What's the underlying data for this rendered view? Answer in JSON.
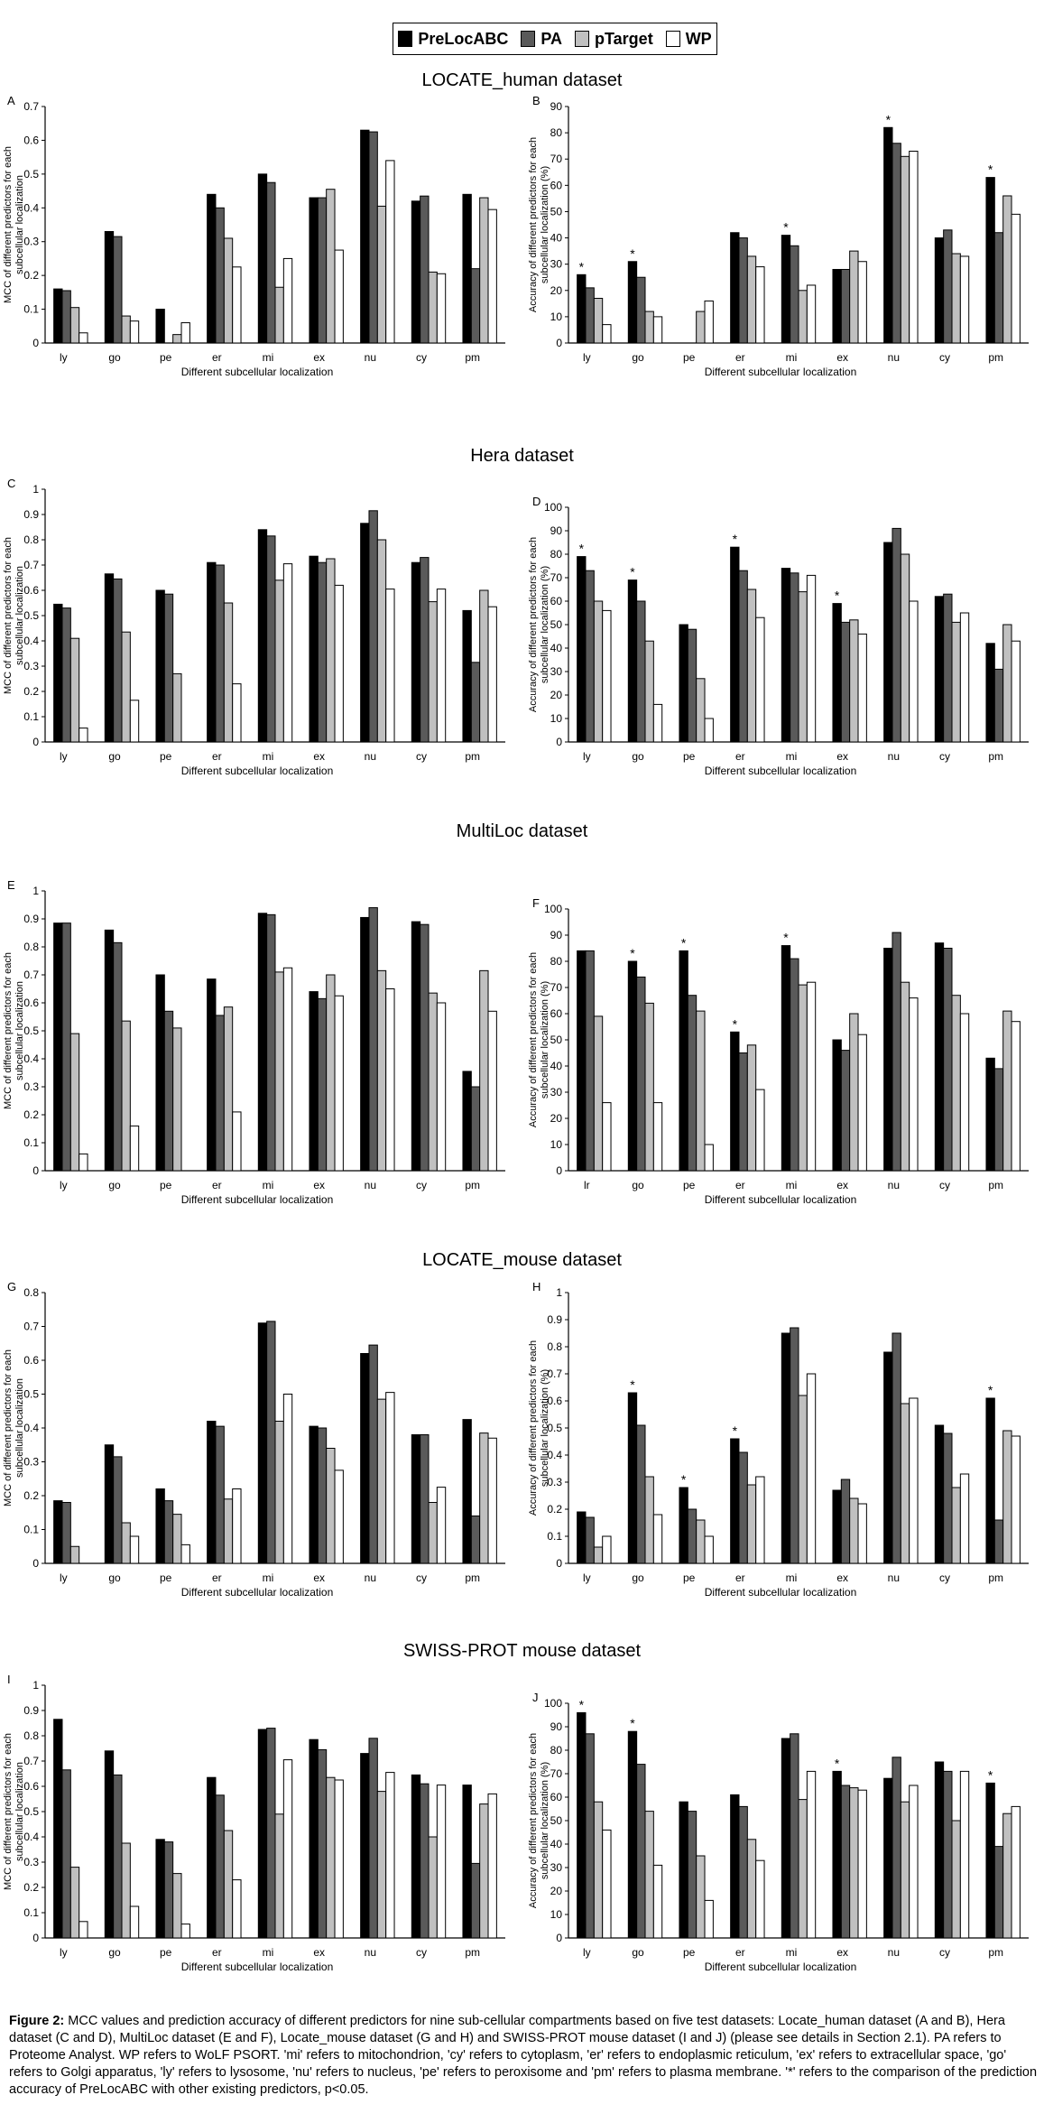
{
  "legend": [
    {
      "name": "PreLocABC",
      "color": "#000000"
    },
    {
      "name": "PA",
      "color": "#5a5a5a"
    },
    {
      "name": "pTarget",
      "color": "#c0c0c0"
    },
    {
      "name": "WP",
      "color": "#ffffff"
    }
  ],
  "dataset_titles": [
    "LOCATE_human dataset",
    "Hera dataset",
    "MultiLoc dataset",
    "LOCATE_mouse dataset",
    "SWISS-PROT mouse dataset"
  ],
  "caption": {
    "label": "Figure 2:",
    "text": " MCC values and prediction accuracy of different predictors for nine sub-cellular compartments based on five test datasets: Locate_human dataset (A and B), Hera dataset (C and D), MultiLoc dataset (E and F), Locate_mouse dataset (G and H) and SWISS-PROT mouse dataset (I and J) (please see details in Section 2.1). PA refers to Proteome Analyst. WP refers to WoLF PSORT. 'mi' refers to mitochondrion, 'cy' refers to cytoplasm, 'er' refers to endoplasmic reticulum, 'ex' refers to extracellular space, 'go' refers to Golgi apparatus, 'ly' refers to lysosome, 'nu' refers to nucleus, 'pe' refers to peroxisome and 'pm' refers to plasma membrane. '*' refers to the comparison of the prediction accuracy of PreLocABC with other existing predictors, p<0.05."
  },
  "chart_data": [
    {
      "type": "bar",
      "panel": "A",
      "xlabel": "Different subcellular localization",
      "ylabel": "MCC of different predictors for each subcellular localization",
      "categories": [
        "ly",
        "go",
        "pe",
        "er",
        "mi",
        "ex",
        "nu",
        "cy",
        "pm"
      ],
      "ylim": [
        0,
        0.7
      ],
      "yticks": [
        "0",
        "0.1",
        "0.2",
        "0.3",
        "0.4",
        "0.5",
        "0.6",
        "0.7"
      ],
      "series": [
        {
          "name": "PreLocABC",
          "values": [
            0.16,
            0.33,
            0.1,
            0.44,
            0.5,
            0.43,
            0.63,
            0.42,
            0.44
          ]
        },
        {
          "name": "PA",
          "values": [
            0.155,
            0.315,
            0,
            0.4,
            0.475,
            0.43,
            0.625,
            0.435,
            0.22
          ]
        },
        {
          "name": "pTarget",
          "values": [
            0.105,
            0.08,
            0.025,
            0.31,
            0.165,
            0.455,
            0.405,
            0.21,
            0.43
          ]
        },
        {
          "name": "WP",
          "values": [
            0.03,
            0.065,
            0.06,
            0.225,
            0.25,
            0.275,
            0.54,
            0.205,
            0.395
          ]
        }
      ],
      "stars": []
    },
    {
      "type": "bar",
      "panel": "B",
      "xlabel": "Different subcellular localization",
      "ylabel": "Accuracy of different predictors for each subcellular localization (%)",
      "categories": [
        "ly",
        "go",
        "pe",
        "er",
        "mi",
        "ex",
        "nu",
        "cy",
        "pm"
      ],
      "ylim": [
        0,
        90
      ],
      "yticks": [
        "0",
        "10",
        "20",
        "30",
        "40",
        "50",
        "60",
        "70",
        "80",
        "90"
      ],
      "series": [
        {
          "name": "PreLocABC",
          "values": [
            26,
            31,
            0,
            42,
            41,
            28,
            82,
            40,
            63
          ]
        },
        {
          "name": "PA",
          "values": [
            21,
            25,
            0,
            40,
            37,
            28,
            76,
            43,
            42
          ]
        },
        {
          "name": "pTarget",
          "values": [
            17,
            12,
            12,
            33,
            20,
            35,
            71,
            34,
            56
          ]
        },
        {
          "name": "WP",
          "values": [
            7,
            10,
            16,
            29,
            22,
            31,
            73,
            33,
            49
          ]
        }
      ],
      "stars": [
        0,
        1,
        4,
        6,
        8
      ]
    },
    {
      "type": "bar",
      "panel": "C",
      "xlabel": "Different subcellular localization",
      "ylabel": "MCC of different predictors for each subcellular localization",
      "categories": [
        "ly",
        "go",
        "pe",
        "er",
        "mi",
        "ex",
        "nu",
        "cy",
        "pm"
      ],
      "ylim": [
        0,
        1
      ],
      "yticks": [
        "0",
        "0.1",
        "0.2",
        "0.3",
        "0.4",
        "0.5",
        "0.6",
        "0.7",
        "0.8",
        "0.9",
        "1"
      ],
      "series": [
        {
          "name": "PreLocABC",
          "values": [
            0.545,
            0.665,
            0.6,
            0.71,
            0.84,
            0.735,
            0.865,
            0.71,
            0.52
          ]
        },
        {
          "name": "PA",
          "values": [
            0.53,
            0.645,
            0.585,
            0.7,
            0.815,
            0.71,
            0.915,
            0.73,
            0.315
          ]
        },
        {
          "name": "pTarget",
          "values": [
            0.41,
            0.435,
            0.27,
            0.55,
            0.64,
            0.725,
            0.8,
            0.555,
            0.6
          ]
        },
        {
          "name": "WP",
          "values": [
            0.055,
            0.165,
            0,
            0.23,
            0.705,
            0.62,
            0.605,
            0.605,
            0.535
          ]
        }
      ],
      "stars": []
    },
    {
      "type": "bar",
      "panel": "D",
      "xlabel": "Different subcellular localization",
      "ylabel": "Accuracy of different predictors for each subcellular localization (%)",
      "categories": [
        "ly",
        "go",
        "pe",
        "er",
        "mi",
        "ex",
        "nu",
        "cy",
        "pm"
      ],
      "ylim": [
        0,
        100
      ],
      "yticks": [
        "0",
        "10",
        "20",
        "30",
        "40",
        "50",
        "60",
        "70",
        "80",
        "90",
        "100"
      ],
      "series": [
        {
          "name": "PreLocABC",
          "values": [
            79,
            69,
            50,
            83,
            74,
            59,
            85,
            62,
            42
          ]
        },
        {
          "name": "PA",
          "values": [
            73,
            60,
            48,
            73,
            72,
            51,
            91,
            63,
            31
          ]
        },
        {
          "name": "pTarget",
          "values": [
            60,
            43,
            27,
            65,
            64,
            52,
            80,
            51,
            50
          ]
        },
        {
          "name": "WP",
          "values": [
            56,
            16,
            10,
            53,
            71,
            46,
            60,
            55,
            43
          ]
        }
      ],
      "stars": [
        0,
        1,
        3,
        5
      ]
    },
    {
      "type": "bar",
      "panel": "E",
      "xlabel": "Different subcellular localization",
      "ylabel": "MCC of different predictors for each subcellular localization",
      "categories": [
        "ly",
        "go",
        "pe",
        "er",
        "mi",
        "ex",
        "nu",
        "cy",
        "pm"
      ],
      "ylim": [
        0,
        1
      ],
      "yticks": [
        "0",
        "0.1",
        "0.2",
        "0.3",
        "0.4",
        "0.5",
        "0.6",
        "0.7",
        "0.8",
        "0.9",
        "1"
      ],
      "series": [
        {
          "name": "PreLocABC",
          "values": [
            0.885,
            0.86,
            0.7,
            0.685,
            0.92,
            0.64,
            0.905,
            0.89,
            0.355
          ]
        },
        {
          "name": "PA",
          "values": [
            0.885,
            0.815,
            0.57,
            0.555,
            0.915,
            0.615,
            0.94,
            0.88,
            0.3
          ]
        },
        {
          "name": "pTarget",
          "values": [
            0.49,
            0.535,
            0.51,
            0.585,
            0.71,
            0.7,
            0.715,
            0.635,
            0.715
          ]
        },
        {
          "name": "WP",
          "values": [
            0.06,
            0.16,
            0,
            0.21,
            0.725,
            0.625,
            0.65,
            0.6,
            0.57
          ]
        }
      ],
      "stars": []
    },
    {
      "type": "bar",
      "panel": "F",
      "xlabel": "Different subcellular localization",
      "ylabel": "Accuracy of different predictors for each subcellular localization (%)",
      "categories": [
        "lr",
        "go",
        "pe",
        "er",
        "mi",
        "ex",
        "nu",
        "cy",
        "pm"
      ],
      "ylim": [
        0,
        100
      ],
      "yticks": [
        "0",
        "10",
        "20",
        "30",
        "40",
        "50",
        "60",
        "70",
        "80",
        "90",
        "100"
      ],
      "series": [
        {
          "name": "PreLocABC",
          "values": [
            84,
            80,
            84,
            53,
            86,
            50,
            85,
            87,
            43
          ]
        },
        {
          "name": "PA",
          "values": [
            84,
            74,
            67,
            45,
            81,
            46,
            91,
            85,
            39
          ]
        },
        {
          "name": "pTarget",
          "values": [
            59,
            64,
            61,
            48,
            71,
            60,
            72,
            67,
            61
          ]
        },
        {
          "name": "WP",
          "values": [
            26,
            26,
            10,
            31,
            72,
            52,
            66,
            60,
            57
          ]
        }
      ],
      "stars": [
        1,
        2,
        3,
        4
      ]
    },
    {
      "type": "bar",
      "panel": "G",
      "xlabel": "Different subcellular localization",
      "ylabel": "MCC of different predictors for each subcellular localization",
      "categories": [
        "ly",
        "go",
        "pe",
        "er",
        "mi",
        "ex",
        "nu",
        "cy",
        "pm"
      ],
      "ylim": [
        0,
        0.8
      ],
      "yticks": [
        "0",
        "0.1",
        "0.2",
        "0.3",
        "0.4",
        "0.5",
        "0.6",
        "0.7",
        "0.8"
      ],
      "series": [
        {
          "name": "PreLocABC",
          "values": [
            0.185,
            0.35,
            0.22,
            0.42,
            0.71,
            0.405,
            0.62,
            0.38,
            0.425
          ]
        },
        {
          "name": "PA",
          "values": [
            0.18,
            0.315,
            0.185,
            0.405,
            0.715,
            0.4,
            0.645,
            0.38,
            0.14
          ]
        },
        {
          "name": "pTarget",
          "values": [
            0.05,
            0.12,
            0.145,
            0.19,
            0.42,
            0.34,
            0.485,
            0.18,
            0.385
          ]
        },
        {
          "name": "WP",
          "values": [
            0,
            0.08,
            0.055,
            0.22,
            0.5,
            0.275,
            0.505,
            0.225,
            0.37
          ]
        }
      ],
      "stars": []
    },
    {
      "type": "bar",
      "panel": "H",
      "xlabel": "Different subcellular localization",
      "ylabel": "Accuracy of different predictors for each subcellular localization (%)",
      "categories": [
        "ly",
        "go",
        "pe",
        "er",
        "mi",
        "ex",
        "nu",
        "cy",
        "pm"
      ],
      "ylim": [
        0,
        1
      ],
      "yticks": [
        "0",
        "0.1",
        "0.2",
        "0.3",
        "0.4",
        "0.5",
        "0.6",
        "0.7",
        "0.8",
        "0.9",
        "1"
      ],
      "series": [
        {
          "name": "PreLocABC",
          "values": [
            0.19,
            0.63,
            0.28,
            0.46,
            0.85,
            0.27,
            0.78,
            0.51,
            0.61
          ]
        },
        {
          "name": "PA",
          "values": [
            0.17,
            0.51,
            0.2,
            0.41,
            0.87,
            0.31,
            0.85,
            0.48,
            0.16
          ]
        },
        {
          "name": "pTarget",
          "values": [
            0.06,
            0.32,
            0.16,
            0.29,
            0.62,
            0.24,
            0.59,
            0.28,
            0.49
          ]
        },
        {
          "name": "WP",
          "values": [
            0.1,
            0.18,
            0.1,
            0.32,
            0.7,
            0.22,
            0.61,
            0.33,
            0.47
          ]
        }
      ],
      "stars": [
        1,
        2,
        3,
        8
      ]
    },
    {
      "type": "bar",
      "panel": "I",
      "xlabel": "Different subcellular localization",
      "ylabel": "MCC of different predictors for each subcellular localization",
      "categories": [
        "ly",
        "go",
        "pe",
        "er",
        "mi",
        "ex",
        "nu",
        "cy",
        "pm"
      ],
      "ylim": [
        0,
        1
      ],
      "yticks": [
        "0",
        "0.1",
        "0.2",
        "0.3",
        "0.4",
        "0.5",
        "0.6",
        "0.7",
        "0.8",
        "0.9",
        "1"
      ],
      "series": [
        {
          "name": "PreLocABC",
          "values": [
            0.865,
            0.74,
            0.39,
            0.635,
            0.825,
            0.785,
            0.73,
            0.645,
            0.605
          ]
        },
        {
          "name": "PA",
          "values": [
            0.665,
            0.645,
            0.38,
            0.565,
            0.83,
            0.745,
            0.79,
            0.61,
            0.295
          ]
        },
        {
          "name": "pTarget",
          "values": [
            0.28,
            0.375,
            0.255,
            0.425,
            0.49,
            0.635,
            0.58,
            0.4,
            0.53
          ]
        },
        {
          "name": "WP",
          "values": [
            0.065,
            0.125,
            0.055,
            0.23,
            0.705,
            0.625,
            0.655,
            0.605,
            0.57
          ]
        }
      ],
      "stars": []
    },
    {
      "type": "bar",
      "panel": "J",
      "xlabel": "Different subcellular localization",
      "ylabel": "Accuracy of different predictors for each subcellular localization (%)",
      "categories": [
        "ly",
        "go",
        "pe",
        "er",
        "mi",
        "ex",
        "nu",
        "cy",
        "pm"
      ],
      "ylim": [
        0,
        100
      ],
      "yticks": [
        "0",
        "10",
        "20",
        "30",
        "40",
        "50",
        "60",
        "70",
        "80",
        "90",
        "100"
      ],
      "series": [
        {
          "name": "PreLocABC",
          "values": [
            96,
            88,
            58,
            61,
            85,
            71,
            68,
            75,
            66
          ]
        },
        {
          "name": "PA",
          "values": [
            87,
            74,
            54,
            56,
            87,
            65,
            77,
            71,
            39
          ]
        },
        {
          "name": "pTarget",
          "values": [
            58,
            54,
            35,
            42,
            59,
            64,
            58,
            50,
            53
          ]
        },
        {
          "name": "WP",
          "values": [
            46,
            31,
            16,
            33,
            71,
            63,
            65,
            71,
            56
          ]
        }
      ],
      "stars": [
        0,
        1,
        5,
        8
      ]
    }
  ]
}
